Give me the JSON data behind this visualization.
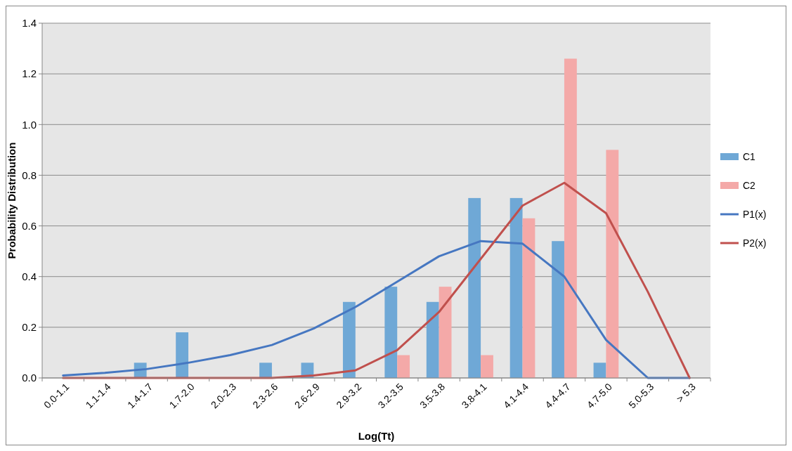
{
  "chart_data": {
    "type": "bar",
    "xlabel": "Log(Tt)",
    "ylabel": "Probability Distribution",
    "categories": [
      "0.0-1.1",
      "1.1-1.4",
      "1.4-1.7",
      "1.7-2.0",
      "2.0-2.3",
      "2.3-2.6",
      "2.6-2.9",
      "2.9-3.2",
      "3.2-3.5",
      "3.5-3.8",
      "3.8-4.1",
      "4.1-4.4",
      "4.4-4.7",
      "4.7-5.0",
      "5.0-5.3",
      "> 5.3"
    ],
    "series": [
      {
        "name": "C1",
        "color": "#6fa8d6",
        "values": [
          0,
          0,
          0.06,
          0.18,
          0,
          0.06,
          0.06,
          0.3,
          0.36,
          0.3,
          0.71,
          0.71,
          0.54,
          0.06,
          0,
          0
        ]
      },
      {
        "name": "C2",
        "color": "#f4a9a8",
        "values": [
          0,
          0,
          0,
          0,
          0,
          0,
          0,
          0,
          0.09,
          0.36,
          0.09,
          0.63,
          1.26,
          0.9,
          0,
          0
        ]
      },
      {
        "name": "P1(x)",
        "type": "line",
        "color": "#4677c1",
        "values": [
          0.01,
          0.02,
          0.035,
          0.06,
          0.09,
          0.13,
          0.195,
          0.28,
          0.38,
          0.48,
          0.54,
          0.53,
          0.4,
          0.15,
          0,
          0
        ]
      },
      {
        "name": "P2(x)",
        "type": "line",
        "color": "#c0504d",
        "values": [
          0,
          0,
          0,
          0,
          0,
          0,
          0.01,
          0.03,
          0.11,
          0.26,
          0.47,
          0.68,
          0.77,
          0.65,
          0.34,
          0
        ]
      }
    ],
    "ylim": [
      0,
      1.4
    ],
    "yticks": [
      {
        "value": 0,
        "label": "0.0"
      },
      {
        "value": 0.2,
        "label": "0.2"
      },
      {
        "value": 0.4,
        "label": "0.4"
      },
      {
        "value": 0.6,
        "label": "0.6"
      },
      {
        "value": 0.8,
        "label": "0.8"
      },
      {
        "value": 1,
        "label": "1.0"
      },
      {
        "value": 1.2,
        "label": "1.2"
      },
      {
        "value": 1.4,
        "label": "1.4"
      }
    ],
    "grid": "y",
    "legend": "right",
    "marker": "none",
    "line_style": "solid"
  }
}
